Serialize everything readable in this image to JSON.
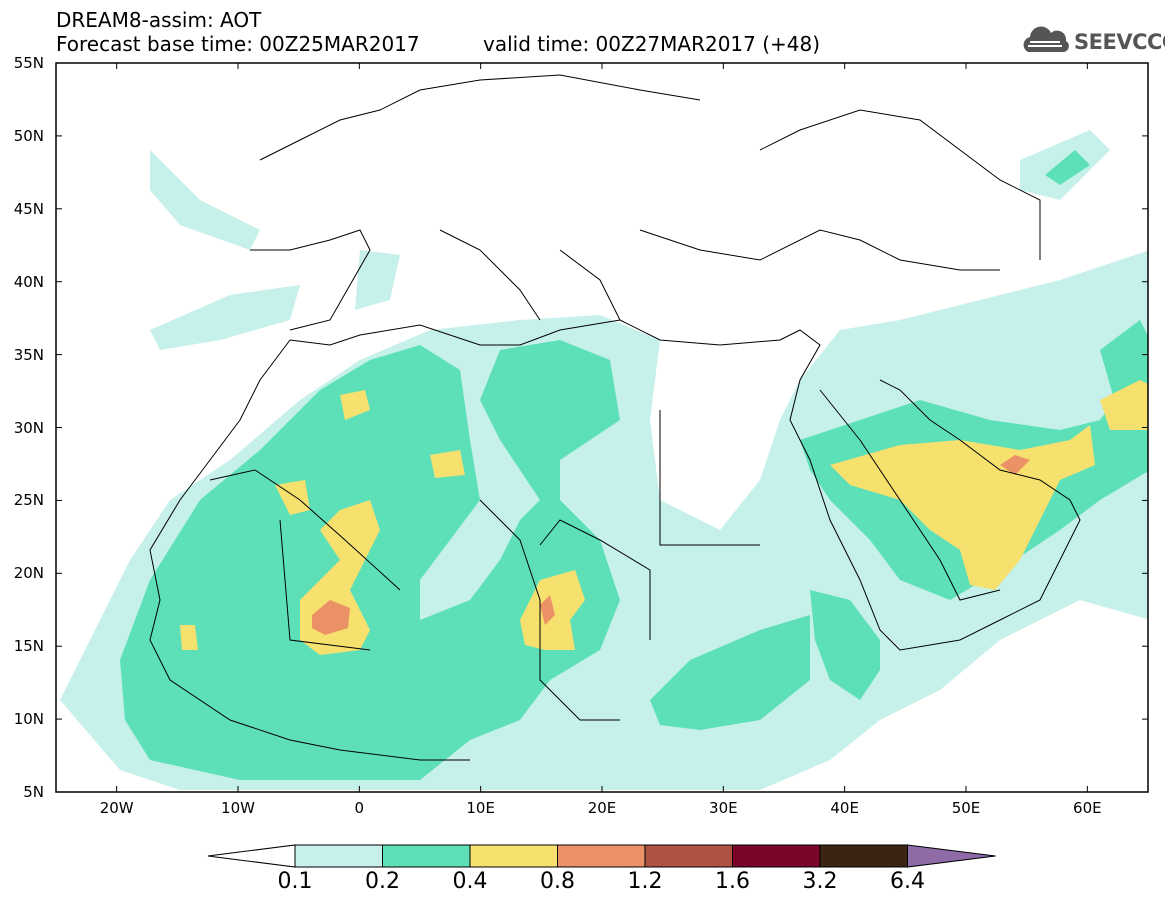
{
  "header": {
    "line1": "DREAM8-assim: AOT",
    "line2": "Forecast base time: 00Z25MAR2017",
    "valid": "valid time: 00Z27MAR2017 (+48)",
    "logo_text": "SEEVCCC"
  },
  "map": {
    "variable": "AOT",
    "lat_range": [
      5,
      55
    ],
    "lon_range": [
      -25,
      65
    ],
    "lat_labels": [
      "55N",
      "50N",
      "45N",
      "40N",
      "35N",
      "30N",
      "25N",
      "20N",
      "15N",
      "10N",
      "5N"
    ],
    "lon_labels": [
      "20W",
      "10W",
      "0",
      "10E",
      "20E",
      "30E",
      "40E",
      "50E",
      "60E"
    ]
  },
  "colorbar": {
    "labels": [
      "0.1",
      "0.2",
      "0.4",
      "0.8",
      "1.2",
      "1.6",
      "3.2",
      "6.4"
    ],
    "colors": [
      "#ffffff",
      "#c6f0ea",
      "#5de0b8",
      "#f6e06e",
      "#ea9266",
      "#ad5344",
      "#7a0628",
      "#3a2512",
      "#8e6aa6"
    ]
  }
}
